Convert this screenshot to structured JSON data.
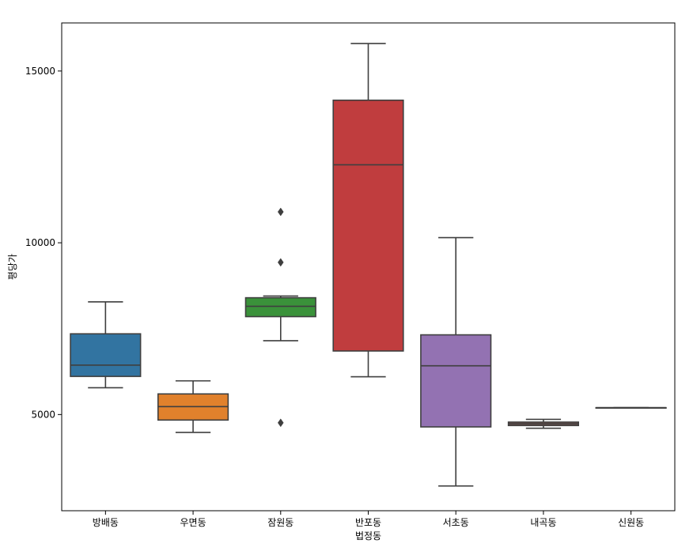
{
  "chart_data": {
    "type": "box",
    "xlabel": "법정동",
    "ylabel": "평당가",
    "ylim": [
      2200,
      16400
    ],
    "yticks": [
      5000,
      10000,
      15000
    ],
    "grid": false,
    "legend": "none",
    "line_color": "#3f3f3f",
    "categories": [
      "방배동",
      "우면동",
      "잠원동",
      "반포동",
      "서초동",
      "내곡동",
      "신원동"
    ],
    "boxes": [
      {
        "category": "방배동",
        "color": "#3274a1",
        "whisker_low": 5780,
        "q1": 6110,
        "median": 6440,
        "q3": 7350,
        "whisker_high": 8280,
        "outliers": []
      },
      {
        "category": "우면동",
        "color": "#e1812c",
        "whisker_low": 4480,
        "q1": 4840,
        "median": 5230,
        "q3": 5600,
        "whisker_high": 5980,
        "outliers": []
      },
      {
        "category": "잠원동",
        "color": "#3a923a",
        "whisker_low": 7150,
        "q1": 7850,
        "median": 8150,
        "q3": 8400,
        "whisker_high": 8450,
        "outliers": [
          10900,
          9430,
          4760
        ]
      },
      {
        "category": "반포동",
        "color": "#c03d3e",
        "whisker_low": 6100,
        "q1": 6850,
        "median": 12270,
        "q3": 14150,
        "whisker_high": 15800,
        "outliers": []
      },
      {
        "category": "서초동",
        "color": "#9372b2",
        "whisker_low": 2920,
        "q1": 4640,
        "median": 6420,
        "q3": 7320,
        "whisker_high": 10150,
        "outliers": []
      },
      {
        "category": "내곡동",
        "color": "#845b53",
        "whisker_low": 4600,
        "q1": 4680,
        "median": 4730,
        "q3": 4780,
        "whisker_high": 4860,
        "outliers": []
      },
      {
        "category": "신원동",
        "color": "#d684bd",
        "whisker_low": 5200,
        "q1": 5200,
        "median": 5200,
        "q3": 5200,
        "whisker_high": 5200,
        "outliers": []
      }
    ]
  }
}
